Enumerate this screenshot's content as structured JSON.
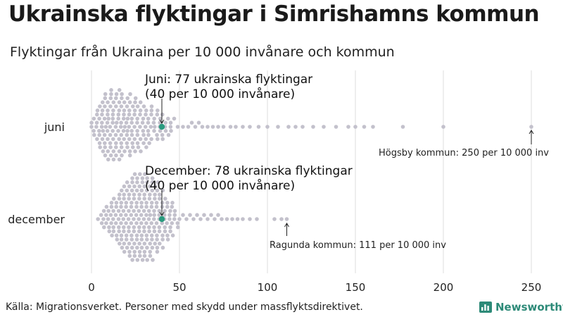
{
  "title": "Ukrainska flyktingar i Simrishamns kommun",
  "subtitle": "Flyktingar från Ukraina per 10 000 invånare och kommun",
  "source": "Källa: Migrationsverket. Personer med skydd under massflyktsdirektivet.",
  "brand": "Newsworthy",
  "colors": {
    "dots": "#c3c1cc",
    "highlight": "#2b9b7f",
    "grid": "#dddddd",
    "brand": "#2d8a78"
  },
  "chart_data": {
    "type": "scatter",
    "subtype": "beeswarm",
    "xlim": [
      0,
      250
    ],
    "xticks": [
      0,
      50,
      100,
      150,
      200,
      250
    ],
    "grid": true,
    "rows": [
      {
        "label": "juni",
        "highlight": {
          "value": 40,
          "annotation": [
            "Juni: 77 ukrainska flyktingar",
            "(40 per 10 000 invånare)"
          ]
        },
        "max": {
          "value": 250,
          "annotation": "Högsby kommun: 250 per 10 000 inv"
        },
        "tail_values": [
          45,
          47,
          49,
          52,
          55,
          57,
          59,
          61,
          63,
          66,
          69,
          72,
          75,
          79,
          82,
          86,
          90,
          95,
          100,
          106,
          112,
          116,
          120,
          126,
          132,
          139,
          146,
          150,
          155,
          160,
          177,
          200,
          250
        ]
      },
      {
        "label": "december",
        "highlight": {
          "value": 40,
          "annotation": [
            "December: 78 ukrainska flyktingar",
            "(40 per 10 000 invånare)"
          ]
        },
        "max": {
          "value": 111,
          "annotation": "Ragunda kommun: 111 per 10 000 inv"
        },
        "tail_values": [
          50,
          52,
          54,
          56,
          58,
          60,
          62,
          64,
          66,
          68,
          70,
          72,
          74,
          77,
          80,
          83,
          86,
          90,
          94,
          104,
          108,
          111
        ]
      }
    ]
  }
}
